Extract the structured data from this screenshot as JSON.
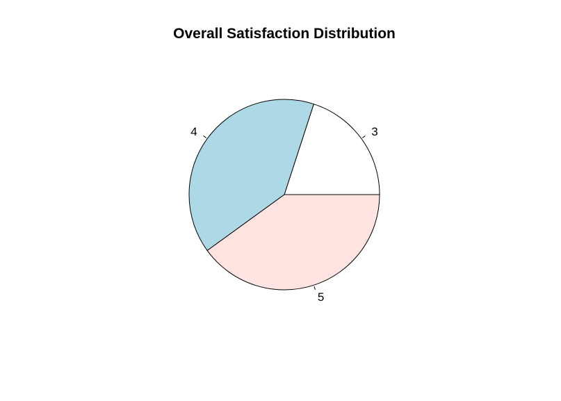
{
  "chart_data": {
    "type": "pie",
    "title": "Overall Satisfaction Distribution",
    "categories": [
      "3",
      "4",
      "5"
    ],
    "values": [
      20,
      40,
      40
    ],
    "colors": [
      "#ffffff",
      "#add8e6",
      "#ffe4e1"
    ],
    "start_angle_deg": 0,
    "direction": "counterclockwise",
    "border_color": "#000000"
  }
}
